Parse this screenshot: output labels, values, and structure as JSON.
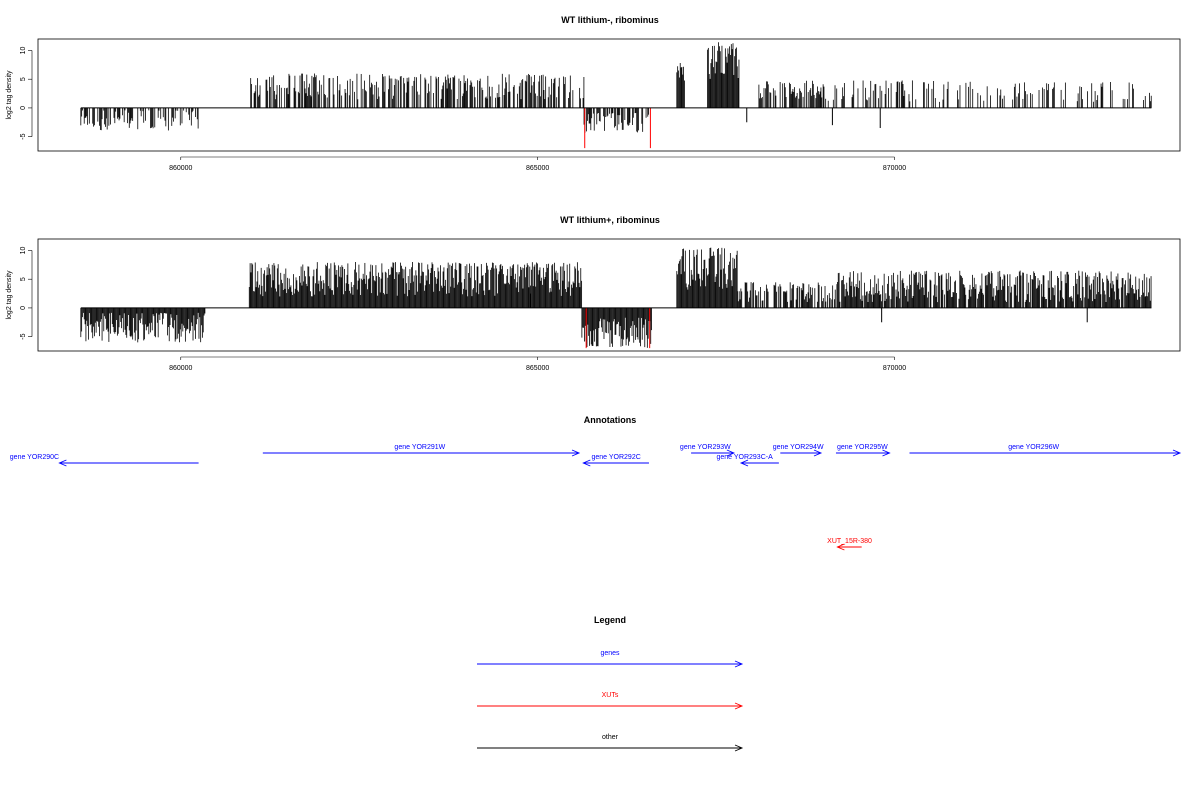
{
  "chart_data": [
    {
      "type": "bar",
      "title": "WT lithium-, ribominus",
      "ylabel": "log2 tag density",
      "xlim": [
        858000,
        874000
      ],
      "ylim": [
        -7.5,
        12
      ],
      "x_ticks": [
        860000,
        865000,
        870000
      ],
      "y_ticks": [
        -5,
        0,
        5,
        10
      ],
      "baseline_range": [
        858600,
        873600
      ],
      "density_segments": [
        {
          "start": 858600,
          "end": 860300,
          "min": -4,
          "max": -0.5,
          "sign": -1,
          "density": 0.55,
          "seed": 11
        },
        {
          "start": 860980,
          "end": 865650,
          "min": 1.5,
          "max": 6,
          "sign": 1,
          "density": 0.6,
          "seed": 12
        },
        {
          "start": 865650,
          "end": 866580,
          "min": -4.5,
          "max": -1,
          "sign": -1,
          "density": 0.7,
          "seed": 13
        },
        {
          "start": 866950,
          "end": 867060,
          "min": 4,
          "max": 8,
          "sign": 1,
          "density": 1,
          "seed": 14
        },
        {
          "start": 867380,
          "end": 867830,
          "min": 5,
          "max": 11.5,
          "sign": 1,
          "density": 1,
          "seed": 15
        },
        {
          "start": 868100,
          "end": 869000,
          "min": 1.5,
          "max": 5,
          "sign": 1,
          "density": 0.7,
          "seed": 16
        },
        {
          "start": 869000,
          "end": 873600,
          "min": 1,
          "max": 4.8,
          "sign": 1,
          "density": 0.3,
          "seed": 17
        }
      ],
      "extra_marks": [
        {
          "x": 867930,
          "y": -2.5,
          "color": "#000000"
        },
        {
          "x": 869130,
          "y": -3.0,
          "color": "#000000"
        },
        {
          "x": 869800,
          "y": -3.5,
          "color": "#000000"
        },
        {
          "x": 865660,
          "y": -7.0,
          "color": "#ff0000"
        },
        {
          "x": 866580,
          "y": -7.0,
          "color": "#ff0000"
        }
      ]
    },
    {
      "type": "bar",
      "title": "WT lithium+, ribominus",
      "ylabel": "log2 tag density",
      "xlim": [
        858000,
        874000
      ],
      "ylim": [
        -7.5,
        12
      ],
      "x_ticks": [
        860000,
        865000,
        870000
      ],
      "y_ticks": [
        -5,
        0,
        5,
        10
      ],
      "baseline_range": [
        858600,
        873600
      ],
      "density_segments": [
        {
          "start": 858600,
          "end": 860350,
          "min": -6,
          "max": -1,
          "sign": -1,
          "density": 1,
          "seed": 21
        },
        {
          "start": 860960,
          "end": 865620,
          "min": 2,
          "max": 8,
          "sign": 1,
          "density": 1,
          "seed": 22
        },
        {
          "start": 865620,
          "end": 866600,
          "min": -7,
          "max": -2,
          "sign": -1,
          "density": 1,
          "seed": 23
        },
        {
          "start": 866950,
          "end": 867800,
          "min": 3,
          "max": 10.5,
          "sign": 1,
          "density": 1,
          "seed": 24
        },
        {
          "start": 867800,
          "end": 869200,
          "min": 1,
          "max": 4.5,
          "sign": 1,
          "density": 0.7,
          "seed": 25
        },
        {
          "start": 869200,
          "end": 873600,
          "min": 1,
          "max": 6.5,
          "sign": 1,
          "density": 0.9,
          "seed": 26
        }
      ],
      "extra_marks": [
        {
          "x": 864900,
          "y": 2.5,
          "color": "#000000"
        },
        {
          "x": 869820,
          "y": -2.5,
          "color": "#000000"
        },
        {
          "x": 872700,
          "y": -2.5,
          "color": "#000000"
        },
        {
          "x": 865680,
          "y": -7.0,
          "color": "#ff0000"
        },
        {
          "x": 866570,
          "y": -7.0,
          "color": "#ff0000"
        }
      ]
    }
  ],
  "annotations": {
    "title": "Annotations",
    "items": [
      {
        "label": "gene YOR290C",
        "start": 858300,
        "end": 860250,
        "strand": "-",
        "row": 1,
        "color": "#0000ff",
        "label_x": 857950
      },
      {
        "label": "gene YOR291W",
        "start": 861150,
        "end": 865580,
        "strand": "+",
        "row": 0,
        "color": "#0000ff",
        "label_x": 863350
      },
      {
        "label": "gene YOR292C",
        "start": 865640,
        "end": 866560,
        "strand": "-",
        "row": 1,
        "color": "#0000ff",
        "label_x": 866100
      },
      {
        "label": "gene YOR293W",
        "start": 867150,
        "end": 867750,
        "strand": "+",
        "row": 0,
        "color": "#0000ff",
        "label_x": 867350
      },
      {
        "label": "gene YOR293C-A",
        "start": 867850,
        "end": 868380,
        "strand": "-",
        "row": 1,
        "color": "#0000ff",
        "label_x": 867900
      },
      {
        "label": "gene YOR294W",
        "start": 868400,
        "end": 868970,
        "strand": "+",
        "row": 0,
        "color": "#0000ff",
        "label_x": 868650
      },
      {
        "label": "gene YOR295W",
        "start": 869180,
        "end": 869930,
        "strand": "+",
        "row": 0,
        "color": "#0000ff",
        "label_x": 869550
      },
      {
        "label": "gene YOR296W",
        "start": 870210,
        "end": 874000,
        "strand": "+",
        "row": 0,
        "color": "#0000ff",
        "label_x": 871950
      },
      {
        "label": "XUT_15R-380",
        "start": 869200,
        "end": 869540,
        "strand": "-",
        "row": 2,
        "color": "#ff0000",
        "label_x": 869370
      }
    ]
  },
  "legend": {
    "title": "Legend",
    "items": [
      {
        "label": "genes",
        "color": "#0000ff"
      },
      {
        "label": "XUTs",
        "color": "#ff0000"
      },
      {
        "label": "other",
        "color": "#000000"
      }
    ]
  }
}
